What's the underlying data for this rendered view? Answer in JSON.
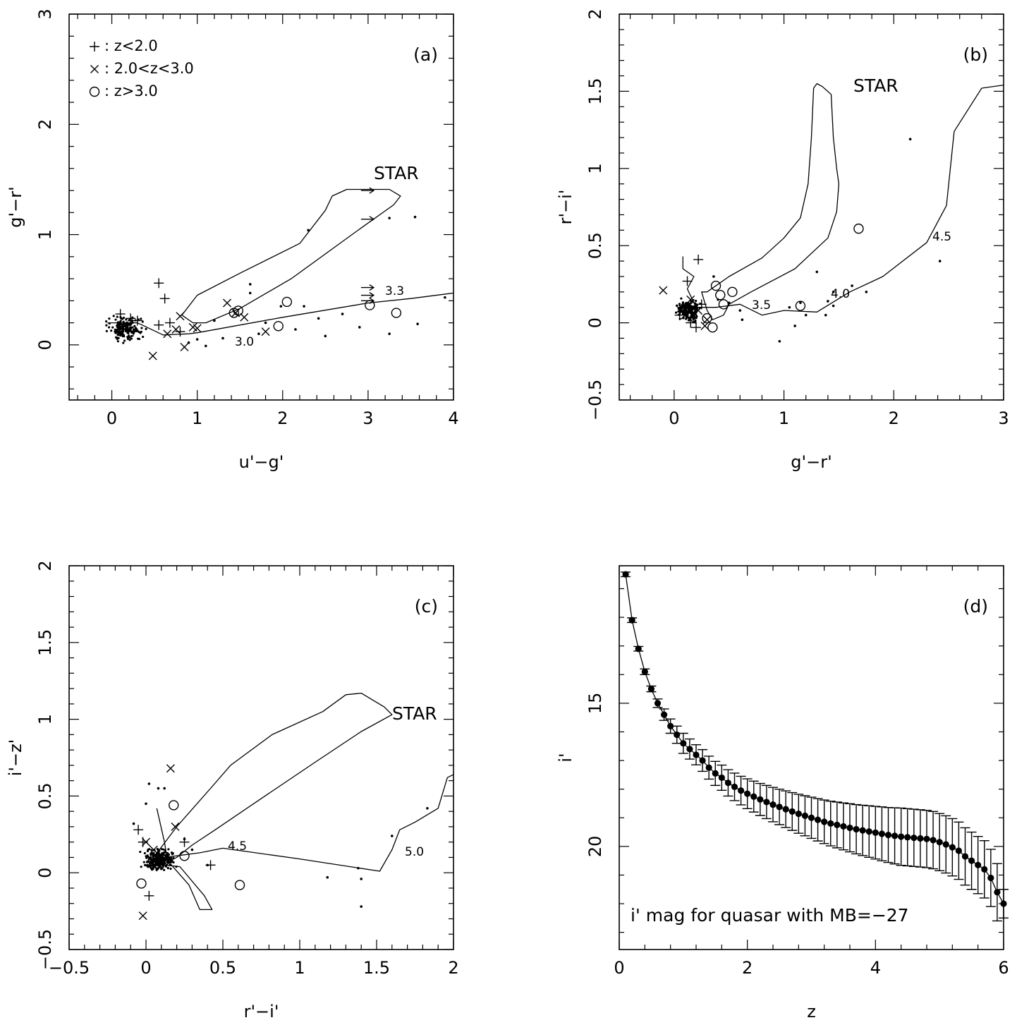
{
  "chart_data": [
    {
      "type": "scatter",
      "panel": "(a)",
      "xlabel": "u'−g'",
      "ylabel": "g'−r'",
      "xlim": [
        -0.5,
        4
      ],
      "ylim": [
        -0.5,
        3
      ],
      "xticks": [
        0,
        1,
        2,
        3,
        4
      ],
      "yticks": [
        0,
        1,
        2,
        3
      ],
      "legend": [
        "+: z<2.0",
        "×: 2.0<z<3.0",
        "○: z>3.0"
      ],
      "annotations": [
        "STAR",
        "3.3",
        "3.0"
      ],
      "star_locus": [
        [
          0.82,
          0.27
        ],
        [
          1.0,
          0.45
        ],
        [
          1.5,
          0.65
        ],
        [
          2.2,
          0.92
        ],
        [
          2.5,
          1.22
        ],
        [
          2.58,
          1.35
        ],
        [
          2.75,
          1.41
        ],
        [
          3.25,
          1.41
        ],
        [
          3.38,
          1.35
        ],
        [
          3.3,
          1.27
        ],
        [
          2.9,
          1.05
        ],
        [
          2.1,
          0.6
        ],
        [
          1.5,
          0.33
        ],
        [
          1.1,
          0.2
        ],
        [
          0.95,
          0.2
        ],
        [
          0.82,
          0.27
        ]
      ],
      "qso_track": [
        [
          -0.05,
          0.2
        ],
        [
          0.3,
          0.2
        ],
        [
          0.6,
          0.09
        ],
        [
          0.9,
          0.1
        ],
        [
          1.0,
          0.11
        ],
        [
          2.0,
          0.25
        ],
        [
          3.0,
          0.38
        ],
        [
          3.5,
          0.42
        ],
        [
          4.0,
          0.47
        ]
      ],
      "plus": [
        [
          0.1,
          0.28
        ],
        [
          0.22,
          0.24
        ],
        [
          0.1,
          0.14
        ],
        [
          0.3,
          0.22
        ],
        [
          0.55,
          0.56
        ],
        [
          0.62,
          0.42
        ],
        [
          0.55,
          0.18
        ],
        [
          0.68,
          0.2
        ],
        [
          0.8,
          0.12
        ],
        [
          0.25,
          0.12
        ]
      ],
      "cross": [
        [
          0.48,
          -0.1
        ],
        [
          0.8,
          0.26
        ],
        [
          0.85,
          -0.02
        ],
        [
          0.75,
          0.14
        ],
        [
          0.95,
          0.16
        ],
        [
          1.0,
          0.15
        ],
        [
          1.35,
          0.38
        ],
        [
          1.45,
          0.29
        ],
        [
          1.55,
          0.25
        ],
        [
          1.8,
          0.12
        ],
        [
          0.65,
          0.1
        ]
      ],
      "circle": [
        [
          1.43,
          0.29
        ],
        [
          1.48,
          0.31
        ],
        [
          1.95,
          0.17
        ],
        [
          2.05,
          0.39
        ],
        [
          3.02,
          0.36
        ],
        [
          3.33,
          0.29
        ]
      ],
      "arrows": [
        [
          3.0,
          1.4
        ],
        [
          3.0,
          1.14
        ],
        [
          3.0,
          0.52
        ],
        [
          3.0,
          0.45
        ],
        [
          3.0,
          0.4
        ]
      ],
      "dots": [
        [
          2.3,
          1.04
        ],
        [
          3.55,
          1.16
        ],
        [
          3.25,
          1.15
        ],
        [
          1.62,
          0.55
        ],
        [
          1.62,
          0.47
        ],
        [
          1.98,
          0.35
        ],
        [
          2.25,
          0.35
        ],
        [
          2.7,
          0.28
        ],
        [
          2.9,
          0.16
        ],
        [
          3.25,
          0.1
        ],
        [
          3.58,
          0.19
        ],
        [
          2.5,
          0.08
        ],
        [
          1.8,
          0.2
        ],
        [
          2.15,
          0.14
        ],
        [
          1.3,
          0.06
        ],
        [
          1.1,
          -0.01
        ],
        [
          3.9,
          0.43
        ],
        [
          1.2,
          0.22
        ],
        [
          1.0,
          0.05
        ],
        [
          0.9,
          0.02
        ],
        [
          1.72,
          0.1
        ],
        [
          2.42,
          0.24
        ]
      ]
    },
    {
      "type": "scatter",
      "panel": "(b)",
      "xlabel": "g'−r'",
      "ylabel": "r'−i'",
      "xlim": [
        -0.5,
        3
      ],
      "ylim": [
        -0.5,
        2
      ],
      "xticks": [
        0,
        1,
        2,
        3
      ],
      "yticks": [
        -0.5,
        0,
        0.5,
        1,
        1.5,
        2
      ],
      "annotations": [
        "STAR",
        "3.5",
        "4.0",
        "4.5"
      ],
      "star_locus": [
        [
          0.3,
          0.2
        ],
        [
          0.5,
          0.3
        ],
        [
          0.8,
          0.42
        ],
        [
          1.0,
          0.55
        ],
        [
          1.15,
          0.68
        ],
        [
          1.22,
          0.9
        ],
        [
          1.25,
          1.2
        ],
        [
          1.27,
          1.52
        ],
        [
          1.3,
          1.55
        ],
        [
          1.35,
          1.53
        ],
        [
          1.43,
          1.48
        ],
        [
          1.45,
          1.2
        ],
        [
          1.48,
          1.0
        ],
        [
          1.5,
          0.9
        ],
        [
          1.48,
          0.72
        ],
        [
          1.4,
          0.55
        ],
        [
          1.1,
          0.35
        ],
        [
          0.7,
          0.2
        ],
        [
          0.5,
          0.12
        ],
        [
          0.45,
          0.05
        ],
        [
          0.35,
          0.02
        ],
        [
          0.3,
          0.08
        ],
        [
          0.25,
          0.2
        ],
        [
          0.3,
          0.2
        ]
      ],
      "qso_track": [
        [
          0.08,
          0.43
        ],
        [
          0.08,
          0.35
        ],
        [
          0.18,
          0.3
        ],
        [
          0.12,
          0.22
        ],
        [
          0.2,
          0.1
        ],
        [
          0.38,
          0.1
        ],
        [
          0.6,
          0.12
        ],
        [
          0.8,
          0.05
        ],
        [
          1.0,
          0.08
        ],
        [
          1.3,
          0.07
        ],
        [
          1.6,
          0.2
        ],
        [
          1.9,
          0.3
        ],
        [
          2.3,
          0.52
        ],
        [
          2.48,
          0.76
        ],
        [
          2.55,
          1.24
        ],
        [
          2.8,
          1.52
        ],
        [
          3.0,
          1.54
        ]
      ],
      "plus": [
        [
          0.22,
          0.41
        ],
        [
          0.12,
          0.27
        ],
        [
          0.05,
          0.05
        ],
        [
          0.15,
          0.0
        ],
        [
          0.2,
          -0.03
        ],
        [
          0.25,
          0.12
        ]
      ],
      "cross": [
        [
          -0.1,
          0.21
        ],
        [
          0.15,
          0.15
        ],
        [
          0.22,
          0.08
        ],
        [
          0.3,
          0.02
        ],
        [
          0.28,
          -0.02
        ],
        [
          0.1,
          0.05
        ],
        [
          0.17,
          0.1
        ]
      ],
      "circle": [
        [
          0.3,
          0.03
        ],
        [
          0.38,
          0.24
        ],
        [
          0.42,
          0.18
        ],
        [
          0.45,
          0.12
        ],
        [
          0.53,
          0.2
        ],
        [
          0.35,
          -0.03
        ],
        [
          1.15,
          0.11
        ],
        [
          1.68,
          0.61
        ]
      ],
      "dots": [
        [
          2.15,
          1.19
        ],
        [
          2.42,
          0.4
        ],
        [
          1.3,
          0.33
        ],
        [
          1.62,
          0.24
        ],
        [
          1.45,
          0.2
        ],
        [
          1.4,
          0.14
        ],
        [
          1.45,
          0.11
        ],
        [
          1.38,
          0.05
        ],
        [
          1.1,
          -0.02
        ],
        [
          0.96,
          -0.12
        ],
        [
          0.62,
          0.02
        ],
        [
          1.05,
          0.1
        ],
        [
          1.15,
          0.13
        ],
        [
          1.2,
          0.05
        ],
        [
          0.5,
          0.13
        ],
        [
          1.75,
          0.2
        ],
        [
          0.6,
          0.08
        ],
        [
          0.36,
          0.3
        ],
        [
          0.4,
          0.15
        ]
      ]
    },
    {
      "type": "scatter",
      "panel": "(c)",
      "xlabel": "r'−i'",
      "ylabel": "i'−z'",
      "xlim": [
        -0.5,
        2
      ],
      "ylim": [
        -0.5,
        2
      ],
      "xticks": [
        -0.5,
        0,
        0.5,
        1,
        1.5,
        2
      ],
      "yticks": [
        -0.5,
        0,
        0.5,
        1,
        1.5,
        2
      ],
      "annotations": [
        "STAR",
        "4.5",
        "5.0"
      ],
      "star_locus": [
        [
          0.05,
          0.1
        ],
        [
          0.2,
          0.3
        ],
        [
          0.42,
          0.55
        ],
        [
          0.55,
          0.7
        ],
        [
          0.82,
          0.9
        ],
        [
          1.15,
          1.05
        ],
        [
          1.3,
          1.16
        ],
        [
          1.4,
          1.17
        ],
        [
          1.55,
          1.08
        ],
        [
          1.6,
          1.03
        ],
        [
          1.4,
          0.92
        ],
        [
          1.1,
          0.72
        ],
        [
          0.7,
          0.45
        ],
        [
          0.45,
          0.28
        ],
        [
          0.3,
          0.18
        ],
        [
          0.2,
          0.1
        ],
        [
          0.1,
          0.05
        ],
        [
          0.05,
          0.1
        ]
      ],
      "qso_track": [
        [
          0.07,
          0.42
        ],
        [
          0.12,
          0.2
        ],
        [
          0.14,
          0.08
        ],
        [
          0.28,
          -0.08
        ],
        [
          0.35,
          -0.24
        ],
        [
          0.43,
          -0.24
        ],
        [
          0.38,
          -0.15
        ],
        [
          0.22,
          0.04
        ],
        [
          0.12,
          0.05
        ],
        [
          0.05,
          0.05
        ],
        [
          0.12,
          0.1
        ],
        [
          0.35,
          0.13
        ],
        [
          0.5,
          0.16
        ],
        [
          1.0,
          0.09
        ],
        [
          1.52,
          0.01
        ],
        [
          1.6,
          0.15
        ],
        [
          1.65,
          0.28
        ],
        [
          1.75,
          0.33
        ],
        [
          1.9,
          0.42
        ],
        [
          1.96,
          0.62
        ],
        [
          2.0,
          0.64
        ]
      ],
      "plus": [
        [
          -0.05,
          0.28
        ],
        [
          -0.02,
          0.2
        ],
        [
          0.02,
          -0.15
        ],
        [
          0.25,
          0.2
        ],
        [
          0.42,
          0.05
        ],
        [
          0.05,
          0.05
        ]
      ],
      "cross": [
        [
          0.16,
          0.68
        ],
        [
          0.19,
          0.3
        ],
        [
          0.0,
          0.2
        ],
        [
          -0.02,
          -0.28
        ],
        [
          0.05,
          0.15
        ],
        [
          0.1,
          0.07
        ]
      ],
      "circle": [
        [
          0.18,
          0.44
        ],
        [
          0.25,
          0.11
        ],
        [
          0.61,
          -0.08
        ],
        [
          -0.03,
          -0.07
        ]
      ],
      "dots": [
        [
          1.18,
          -0.03
        ],
        [
          1.38,
          0.03
        ],
        [
          1.4,
          -0.04
        ],
        [
          1.4,
          -0.22
        ],
        [
          1.6,
          0.24
        ],
        [
          1.83,
          0.42
        ],
        [
          0.02,
          0.58
        ],
        [
          0.08,
          0.55
        ],
        [
          0.12,
          0.55
        ],
        [
          0.0,
          0.45
        ],
        [
          -0.08,
          0.32
        ],
        [
          0.4,
          0.05
        ],
        [
          0.25,
          0.22
        ],
        [
          0.3,
          0.15
        ]
      ]
    },
    {
      "type": "line",
      "panel": "(d)",
      "xlabel": "z",
      "ylabel": "i'",
      "xlim": [
        0,
        6
      ],
      "ylim": [
        23.6,
        10.2
      ],
      "xticks": [
        0,
        2,
        4,
        6
      ],
      "yticks": [
        15,
        20
      ],
      "annotation": "i' mag for quasar with MB=−27",
      "x": [
        0.1,
        0.2,
        0.3,
        0.4,
        0.5,
        0.6,
        0.7,
        0.8,
        0.9,
        1.0,
        1.1,
        1.2,
        1.3,
        1.4,
        1.5,
        1.6,
        1.7,
        1.8,
        1.9,
        2.0,
        2.1,
        2.2,
        2.3,
        2.4,
        2.5,
        2.6,
        2.7,
        2.8,
        2.9,
        3.0,
        3.1,
        3.2,
        3.3,
        3.4,
        3.5,
        3.6,
        3.7,
        3.8,
        3.9,
        4.0,
        4.1,
        4.2,
        4.3,
        4.4,
        4.5,
        4.6,
        4.7,
        4.8,
        4.9,
        5.0,
        5.1,
        5.2,
        5.3,
        5.4,
        5.5,
        5.6,
        5.7,
        5.8,
        5.9,
        6.0
      ],
      "y": [
        10.5,
        12.1,
        13.1,
        13.9,
        14.5,
        15.0,
        15.4,
        15.8,
        16.1,
        16.4,
        16.6,
        16.8,
        17.0,
        17.25,
        17.45,
        17.6,
        17.78,
        17.92,
        18.05,
        18.16,
        18.26,
        18.36,
        18.45,
        18.54,
        18.62,
        18.7,
        18.78,
        18.86,
        18.93,
        19.0,
        19.07,
        19.14,
        19.2,
        19.25,
        19.3,
        19.35,
        19.4,
        19.44,
        19.48,
        19.52,
        19.56,
        19.6,
        19.63,
        19.66,
        19.68,
        19.7,
        19.72,
        19.74,
        19.78,
        19.85,
        19.93,
        20.03,
        20.15,
        20.35,
        20.5,
        20.65,
        20.8,
        21.1,
        21.6,
        22.0
      ],
      "err": [
        0.08,
        0.08,
        0.08,
        0.1,
        0.1,
        0.15,
        0.2,
        0.25,
        0.3,
        0.35,
        0.35,
        0.35,
        0.38,
        0.4,
        0.42,
        0.44,
        0.46,
        0.48,
        0.5,
        0.52,
        0.54,
        0.56,
        0.58,
        0.6,
        0.62,
        0.64,
        0.66,
        0.68,
        0.7,
        0.72,
        0.74,
        0.76,
        0.78,
        0.8,
        0.82,
        0.84,
        0.86,
        0.88,
        0.9,
        0.92,
        0.94,
        0.96,
        0.98,
        1.0,
        1.0,
        1.0,
        1.0,
        1.0,
        1.0,
        1.0,
        1.0,
        1.0,
        1.0,
        1.0,
        1.0,
        1.0,
        1.0,
        1.0,
        1.0,
        0.5
      ]
    }
  ]
}
